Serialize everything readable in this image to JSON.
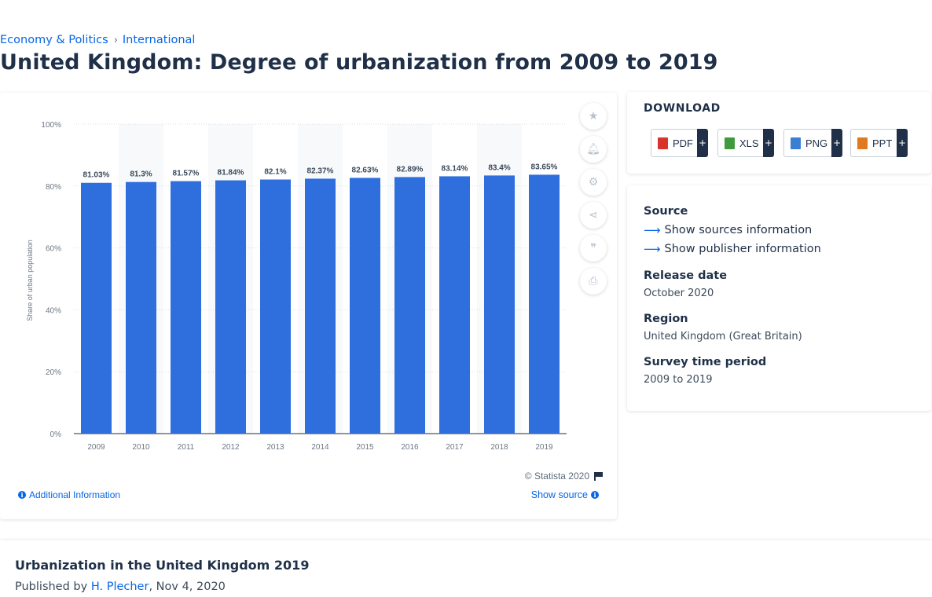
{
  "breadcrumb": {
    "items": [
      "Economy & Politics",
      "International"
    ],
    "separator": "›"
  },
  "page_title": "United Kingdom: Degree of urbanization from 2009 to 2019",
  "chart_data": {
    "type": "bar",
    "title": "",
    "xlabel": "",
    "ylabel": "Share of urban population",
    "categories": [
      "2009",
      "2010",
      "2011",
      "2012",
      "2013",
      "2014",
      "2015",
      "2016",
      "2017",
      "2018",
      "2019"
    ],
    "values": [
      81.03,
      81.3,
      81.57,
      81.84,
      82.1,
      82.37,
      82.63,
      82.89,
      83.14,
      83.4,
      83.65
    ],
    "data_labels": [
      "81.03%",
      "81.3%",
      "81.57%",
      "81.84%",
      "82.1%",
      "82.37%",
      "82.63%",
      "82.89%",
      "83.14%",
      "83.4%",
      "83.65%"
    ],
    "ylim": [
      0,
      100
    ],
    "yticks": [
      "0%",
      "20%",
      "40%",
      "60%",
      "80%",
      "100%"
    ],
    "grid": true,
    "bar_color": "#2f6fdd"
  },
  "chart_footer": {
    "copyright": "© Statista 2020",
    "additional_info": "Additional Information",
    "show_source": "Show source"
  },
  "toolbar": {
    "icons": [
      "star-icon",
      "bell-icon",
      "gear-icon",
      "share-icon",
      "quote-icon",
      "print-icon"
    ]
  },
  "download": {
    "title": "DOWNLOAD",
    "buttons": [
      {
        "label": "PDF",
        "icon": "pdf-file-icon",
        "color": "#d9342b"
      },
      {
        "label": "XLS",
        "icon": "xls-file-icon",
        "color": "#3f9a3f"
      },
      {
        "label": "PNG",
        "icon": "png-file-icon",
        "color": "#3a7fd4"
      },
      {
        "label": "PPT",
        "icon": "ppt-file-icon",
        "color": "#e07a22"
      }
    ],
    "plus": "+"
  },
  "info": {
    "source_label": "Source",
    "show_sources": "Show sources information",
    "show_publisher": "Show publisher information",
    "release_label": "Release date",
    "release_value": "October 2020",
    "region_label": "Region",
    "region_value": "United Kingdom (Great Britain)",
    "survey_label": "Survey time period",
    "survey_value": "2009 to 2019"
  },
  "bottom": {
    "title": "Urbanization in the United Kingdom 2019",
    "published_prefix": "Published by ",
    "author": "H. Plecher",
    "date": ", Nov 4, 2020"
  }
}
